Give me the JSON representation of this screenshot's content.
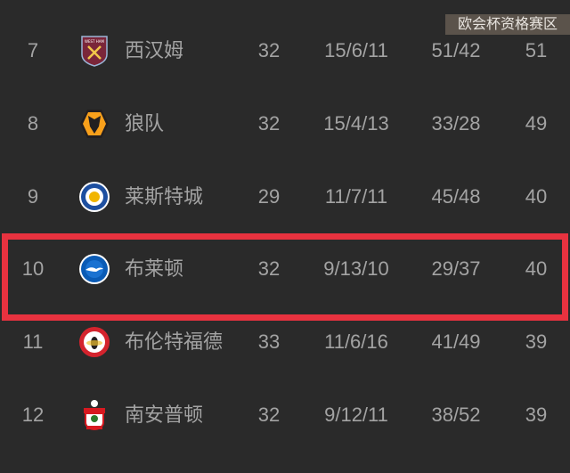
{
  "zone_label": "欧会杯资格赛区",
  "highlight_color": "#e8323f",
  "rows": [
    {
      "rank": "7",
      "team": "西汉姆",
      "logo": "west-ham-crest",
      "played": "32",
      "record": "15/6/11",
      "goals": "51/42",
      "points": "51"
    },
    {
      "rank": "8",
      "team": "狼队",
      "logo": "wolves-crest",
      "played": "32",
      "record": "15/4/13",
      "goals": "33/28",
      "points": "49"
    },
    {
      "rank": "9",
      "team": "莱斯特城",
      "logo": "leicester-crest",
      "played": "29",
      "record": "11/7/11",
      "goals": "45/48",
      "points": "40"
    },
    {
      "rank": "10",
      "team": "布莱顿",
      "logo": "brighton-crest",
      "played": "32",
      "record": "9/13/10",
      "goals": "29/37",
      "points": "40"
    },
    {
      "rank": "11",
      "team": "布伦特福德",
      "logo": "brentford-crest",
      "played": "33",
      "record": "11/6/16",
      "goals": "41/49",
      "points": "39"
    },
    {
      "rank": "12",
      "team": "南安普顿",
      "logo": "southampton-crest",
      "played": "32",
      "record": "9/12/11",
      "goals": "38/52",
      "points": "39"
    }
  ]
}
